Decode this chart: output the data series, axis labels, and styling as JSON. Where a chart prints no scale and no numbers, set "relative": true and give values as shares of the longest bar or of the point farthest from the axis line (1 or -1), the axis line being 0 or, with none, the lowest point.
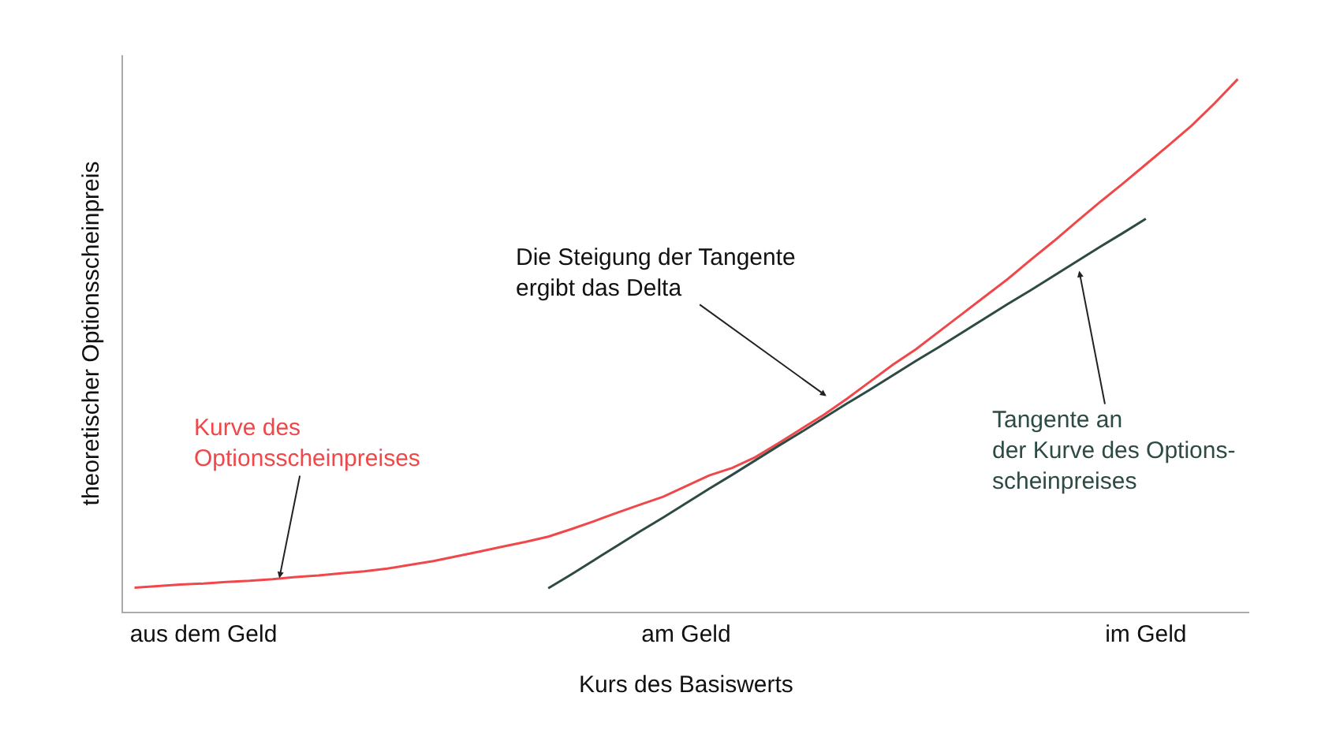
{
  "chart_data": {
    "type": "line",
    "relative": true,
    "xlabel": "Kurs des Basiswerts",
    "ylabel": "theoretischer Optionsscheinpreis",
    "categories": [
      null,
      null,
      null,
      "aus dem Geld",
      null,
      null,
      null,
      null,
      null,
      null,
      null,
      null,
      null,
      null,
      null,
      null,
      null,
      null,
      null,
      null,
      null,
      null,
      null,
      null,
      "am Geld",
      null,
      null,
      null,
      null,
      null,
      null,
      null,
      null,
      null,
      null,
      null,
      null,
      null,
      null,
      null,
      null,
      null,
      null,
      null,
      "im Geld",
      null,
      null,
      null,
      null
    ],
    "series": [
      {
        "color": "#f0484a",
        "values": [
          0.045,
          0.048,
          0.051,
          0.053,
          0.056,
          0.058,
          0.061,
          0.065,
          0.068,
          0.072,
          0.076,
          0.081,
          0.088,
          0.095,
          0.104,
          0.113,
          0.122,
          0.131,
          0.141,
          0.155,
          0.17,
          0.186,
          0.201,
          0.216,
          0.236,
          0.256,
          0.27,
          0.29,
          0.316,
          0.343,
          0.37,
          0.4,
          0.432,
          0.464,
          0.493,
          0.526,
          0.559,
          0.592,
          0.625,
          0.661,
          0.696,
          0.733,
          0.769,
          0.804,
          0.84,
          0.876,
          0.913,
          0.955,
          1
        ]
      },
      {
        "color": "#2e4a45",
        "values": [
          null,
          null,
          null,
          null,
          null,
          null,
          null,
          null,
          null,
          null,
          null,
          null,
          null,
          null,
          null,
          null,
          null,
          null,
          0.044,
          0.07,
          0.097,
          0.124,
          0.151,
          0.177,
          0.204,
          0.231,
          0.257,
          0.284,
          0.311,
          0.337,
          0.364,
          0.391,
          0.417,
          0.444,
          0.471,
          0.497,
          0.524,
          0.551,
          0.578,
          0.604,
          0.631,
          0.658,
          0.685,
          0.711,
          0.738,
          null,
          null,
          null,
          null
        ]
      }
    ],
    "annotations": [
      "Kurve des\nOptionsscheinpreises",
      "Die Steigung der Tangente\nergibt das Delta",
      "Tangente an\nder Kurve des Options-\nscheinpreises"
    ]
  }
}
